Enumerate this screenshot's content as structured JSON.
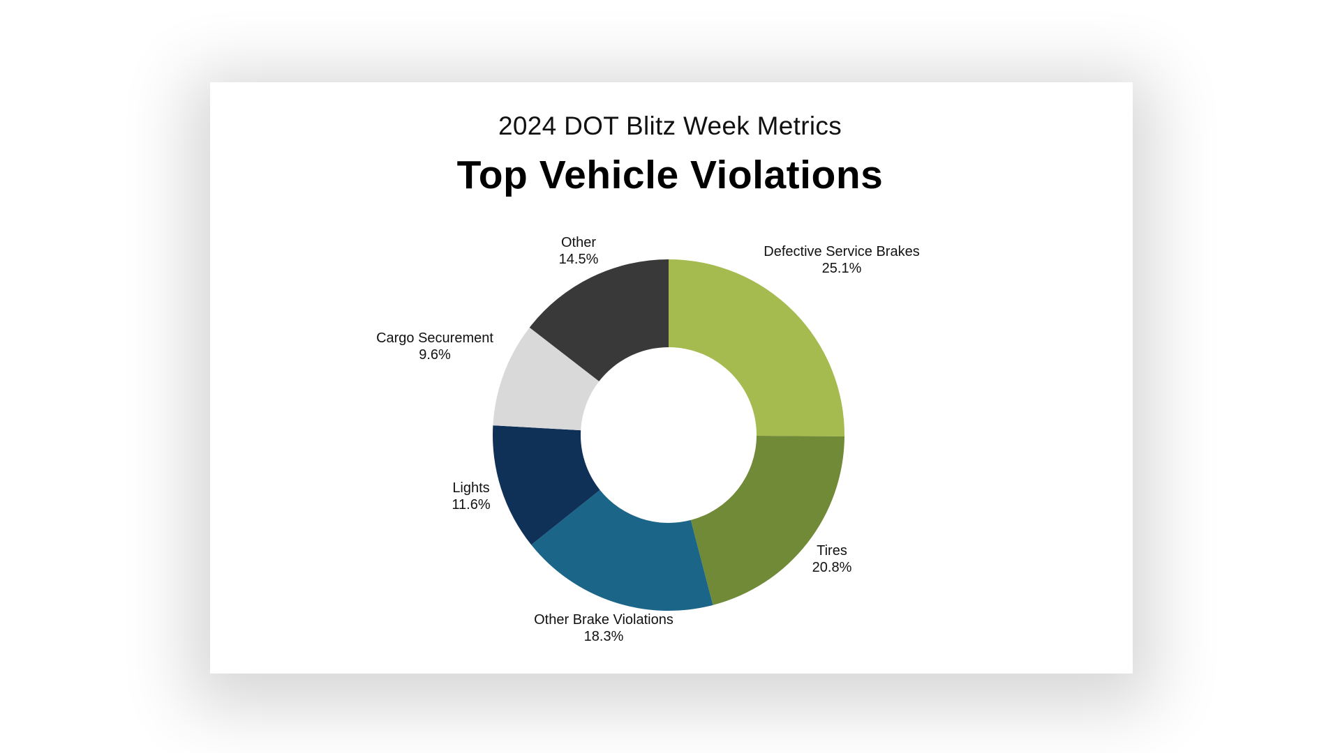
{
  "header": {
    "subtitle": "2024 DOT Blitz Week Metrics",
    "title": "Top Vehicle Violations"
  },
  "chart_data": {
    "type": "pie",
    "style": "donut",
    "title": "Top Vehicle Violations",
    "subtitle": "2024 DOT Blitz Week Metrics",
    "legend": "none",
    "labels": [
      "Defective Service Brakes",
      "Tires",
      "Other Brake Violations",
      "Lights",
      "Cargo Securement",
      "Other"
    ],
    "values": [
      25.1,
      20.8,
      18.3,
      11.6,
      9.6,
      14.5
    ],
    "value_labels": [
      "25.1%",
      "20.8%",
      "18.3%",
      "11.6%",
      "9.6%",
      "14.5%"
    ],
    "colors": [
      "#a5bb4f",
      "#718a37",
      "#1b6589",
      "#0f3158",
      "#d9d9d9",
      "#393939"
    ]
  }
}
